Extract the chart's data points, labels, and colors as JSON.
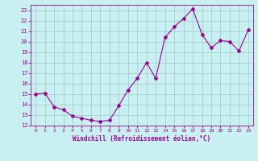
{
  "x": [
    0,
    1,
    2,
    3,
    4,
    5,
    6,
    7,
    8,
    9,
    10,
    11,
    12,
    13,
    14,
    15,
    16,
    17,
    18,
    19,
    20,
    21,
    22,
    23
  ],
  "y": [
    15.0,
    15.1,
    13.8,
    13.5,
    12.9,
    12.7,
    12.5,
    12.4,
    12.5,
    13.9,
    15.4,
    16.5,
    18.0,
    16.5,
    20.4,
    21.4,
    22.2,
    23.1,
    20.7,
    19.4,
    20.1,
    20.0,
    19.1,
    21.1
  ],
  "line_color": "#990099",
  "marker": "D",
  "marker_size": 2,
  "bg_color": "#c8f0f0",
  "grid_color": "#aacccc",
  "axis_color": "#990099",
  "tick_label_color": "#990099",
  "xlabel": "Windchill (Refroidissement éolien,°C)",
  "xlabel_color": "#990099",
  "xlim": [
    -0.5,
    23.5
  ],
  "ylim": [
    12,
    23.5
  ],
  "yticks": [
    12,
    13,
    14,
    15,
    16,
    17,
    18,
    19,
    20,
    21,
    22,
    23
  ],
  "xticks": [
    0,
    1,
    2,
    3,
    4,
    5,
    6,
    7,
    8,
    9,
    10,
    11,
    12,
    13,
    14,
    15,
    16,
    17,
    18,
    19,
    20,
    21,
    22,
    23
  ]
}
